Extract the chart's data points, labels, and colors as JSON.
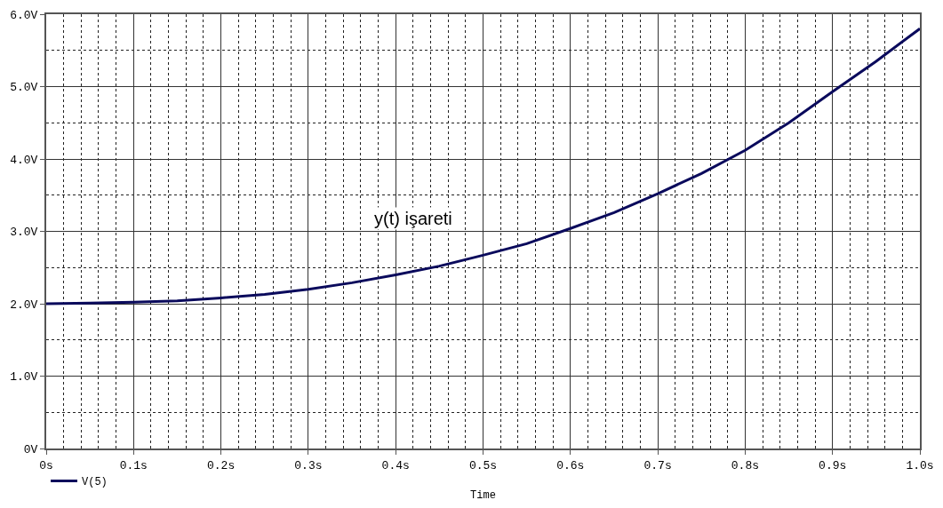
{
  "chart_data": {
    "type": "line",
    "xlabel": "Time",
    "annotations": [
      "y(t) işareti"
    ],
    "x": [
      0,
      0.05,
      0.1,
      0.15,
      0.2,
      0.25,
      0.3,
      0.35,
      0.4,
      0.45,
      0.5,
      0.55,
      0.6,
      0.65,
      0.7,
      0.75,
      0.8,
      0.85,
      0.9,
      0.95,
      1.0
    ],
    "series": [
      {
        "name": "V(5)",
        "color": "#0a0a5c",
        "values": [
          2.0,
          2.01,
          2.02,
          2.04,
          2.08,
          2.13,
          2.2,
          2.29,
          2.4,
          2.52,
          2.67,
          2.83,
          3.04,
          3.26,
          3.52,
          3.8,
          4.12,
          4.5,
          4.93,
          5.35,
          5.8
        ]
      }
    ],
    "xlim": [
      0,
      1.0
    ],
    "ylim": [
      0,
      6.0
    ],
    "xticks": [
      {
        "value": 0,
        "label": "0s"
      },
      {
        "value": 0.1,
        "label": "0.1s"
      },
      {
        "value": 0.2,
        "label": "0.2s"
      },
      {
        "value": 0.3,
        "label": "0.3s"
      },
      {
        "value": 0.4,
        "label": "0.4s"
      },
      {
        "value": 0.5,
        "label": "0.5s"
      },
      {
        "value": 0.6,
        "label": "0.6s"
      },
      {
        "value": 0.7,
        "label": "0.7s"
      },
      {
        "value": 0.8,
        "label": "0.8s"
      },
      {
        "value": 0.9,
        "label": "0.9s"
      },
      {
        "value": 1.0,
        "label": "1.0s"
      }
    ],
    "yticks": [
      {
        "value": 0,
        "label": "0V"
      },
      {
        "value": 1,
        "label": "1.0V"
      },
      {
        "value": 2,
        "label": "2.0V"
      },
      {
        "value": 3,
        "label": "3.0V"
      },
      {
        "value": 4,
        "label": "4.0V"
      },
      {
        "value": 5,
        "label": "5.0V"
      },
      {
        "value": 6,
        "label": "6.0V"
      }
    ],
    "grid": true,
    "legend": "bottom left",
    "marker": "none",
    "line_style": "solid"
  }
}
